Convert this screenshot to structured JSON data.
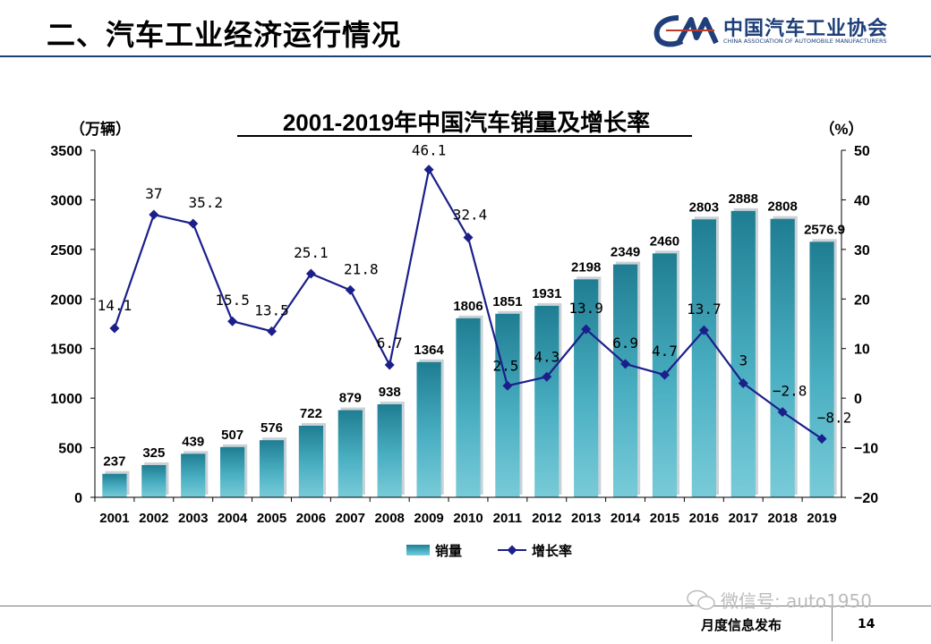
{
  "header": {
    "title": "二、汽车工业经济运行情况"
  },
  "logo": {
    "abbr": "CAM",
    "name_cn": "中国汽车工业协会",
    "name_en": "CHINA ASSOCIATION OF AUTOMOBILE MANUFACTURERS"
  },
  "footer": {
    "text": "月度信息发布",
    "page": "14",
    "watermark": "微信号: auto1950"
  },
  "colors": {
    "bar": "#3aa0b4",
    "line": "#1b1f8a",
    "header_rule": "#1f3f7a"
  },
  "chart_data": {
    "type": "bar",
    "title": "2001-2019年中国汽车销量及增长率",
    "ylabel": "（万辆）",
    "y2label": "（%）",
    "ylim": [
      0,
      3500
    ],
    "y2lim": [
      -20,
      50
    ],
    "yticks": [
      "0",
      "500",
      "1000",
      "1500",
      "2000",
      "2500",
      "3000",
      "3500"
    ],
    "y2ticks": [
      "−20",
      "−10",
      "0",
      "10",
      "20",
      "30",
      "40",
      "50"
    ],
    "grid": false,
    "legend": "bottom-center",
    "categories": [
      "2001",
      "2002",
      "2003",
      "2004",
      "2005",
      "2006",
      "2007",
      "2008",
      "2009",
      "2010",
      "2011",
      "2012",
      "2013",
      "2014",
      "2015",
      "2016",
      "2017",
      "2018",
      "2019"
    ],
    "series": [
      {
        "name": "销量",
        "type": "bar",
        "axis": "left",
        "values": [
          237,
          325,
          439,
          507,
          576,
          722,
          879,
          938,
          1364,
          1806,
          1851,
          1931,
          2198,
          2349,
          2460,
          2803,
          2888,
          2808,
          2576.9
        ],
        "labels": [
          "237",
          "325",
          "439",
          "507",
          "576",
          "722",
          "879",
          "938",
          "1364",
          "1806",
          "1851",
          "1931",
          "2198",
          "2349",
          "2460",
          "2803",
          "2888",
          "2808",
          "2576.9"
        ]
      },
      {
        "name": "增长率",
        "type": "line",
        "axis": "right",
        "values": [
          14.1,
          37,
          35.2,
          15.5,
          13.5,
          25.1,
          21.8,
          6.7,
          46.1,
          32.4,
          2.5,
          4.3,
          13.9,
          6.9,
          4.7,
          13.7,
          3,
          -2.8,
          -8.2
        ],
        "labels": [
          "14.1",
          "37",
          "35.2",
          "15.5",
          "13.5",
          "25.1",
          "21.8",
          "6.7",
          "46.1",
          "32.4",
          "2.5",
          "4.3",
          "13.9",
          "6.9",
          "4.7",
          "13.7",
          "3",
          "−2.8",
          "−8.2"
        ]
      }
    ]
  }
}
